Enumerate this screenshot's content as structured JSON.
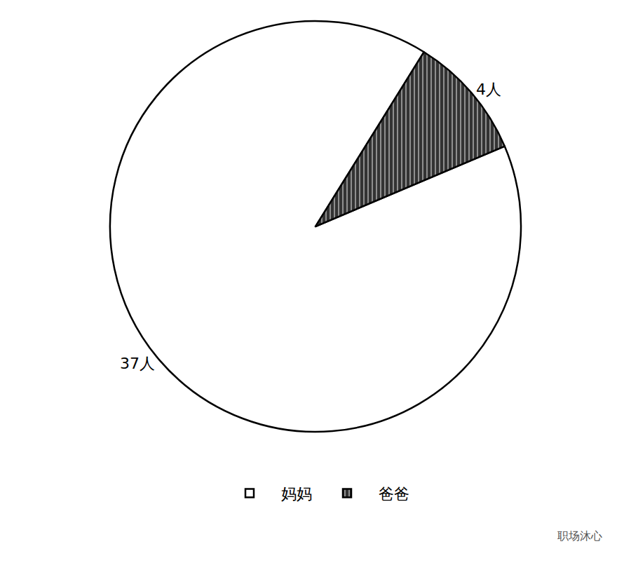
{
  "chart_data": {
    "type": "pie",
    "categories": [
      "妈妈",
      "爸爸"
    ],
    "values": [
      37,
      4
    ],
    "value_labels": [
      "37人",
      "4人"
    ],
    "colors": [
      "#ffffff",
      "#333333"
    ],
    "data_labels": true,
    "legend": "bottom",
    "annotations": [
      "职场沐心"
    ]
  }
}
